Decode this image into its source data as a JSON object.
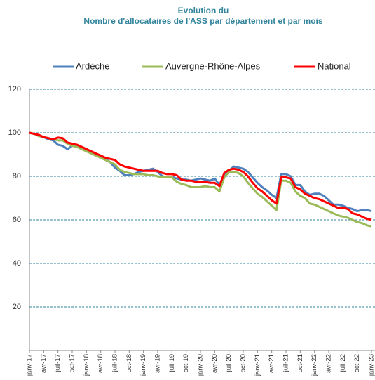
{
  "chart_data": {
    "type": "line",
    "title": [
      "Evolution du",
      "Nombre d'allocataires de l'ASS par département et par mois"
    ],
    "categories": [
      "janv-17",
      null,
      null,
      "avr-17",
      null,
      null,
      "juil-17",
      null,
      null,
      "oct-17",
      null,
      null,
      "janv-18",
      null,
      null,
      "avr-18",
      null,
      null,
      "juil-18",
      null,
      null,
      "oct-18",
      null,
      null,
      "janv-19",
      null,
      null,
      "avr-19",
      null,
      null,
      "juil-19",
      null,
      null,
      "oct-19",
      null,
      null,
      "janv-20",
      null,
      null,
      "avr-20",
      null,
      null,
      "juil-20",
      null,
      null,
      "oct-20",
      null,
      null,
      "janv-21",
      null,
      null,
      "avr-21",
      null,
      null,
      "juil-21",
      null,
      null,
      "oct-21",
      null,
      null,
      "janv-22",
      null,
      null,
      "avr-22",
      null,
      null,
      "juil-22",
      null,
      null,
      "oct-22",
      null,
      null,
      "janv-23"
    ],
    "series": [
      {
        "name": "Ardèche",
        "color": "#4f81bd",
        "values": [
          100,
          99.5,
          98.5,
          98,
          97,
          96.5,
          94.5,
          94,
          92.5,
          94,
          94,
          93,
          92,
          91,
          90,
          89,
          88,
          86.5,
          84,
          82.5,
          80.5,
          80.5,
          81,
          82,
          82.5,
          83,
          83.5,
          82,
          80,
          79.5,
          79.5,
          79,
          78.5,
          78.5,
          78,
          78.5,
          79,
          78.5,
          78,
          79,
          76,
          81,
          82.5,
          84.5,
          84,
          83.5,
          82,
          79.5,
          77,
          75,
          73.5,
          71.5,
          70,
          81,
          81,
          80,
          76,
          76,
          73,
          71.5,
          72,
          72,
          71,
          69,
          67,
          67,
          66.5,
          65.5,
          65,
          64,
          64.5,
          64.5,
          64
        ]
      },
      {
        "name": "Auvergne-Rhône-Alpes",
        "color": "#9bbb59",
        "values": [
          100,
          99.5,
          98.5,
          98,
          97.5,
          97,
          96.5,
          96.5,
          95,
          94,
          93.5,
          92.5,
          91.5,
          90.5,
          89.5,
          88.5,
          87.5,
          86.5,
          85.5,
          83,
          82,
          81.5,
          81,
          81,
          81,
          80.5,
          80.5,
          80,
          79.5,
          79.5,
          79.5,
          77.5,
          76.5,
          76,
          75,
          75,
          75,
          75.5,
          75,
          75,
          73,
          79.5,
          82,
          82,
          81.5,
          80,
          77,
          74.5,
          72,
          70.5,
          68.5,
          66.5,
          64.5,
          78,
          78,
          77,
          73,
          71,
          70,
          67.5,
          67,
          66,
          65,
          64,
          63,
          62,
          61.5,
          61,
          60,
          59,
          58.5,
          57.5,
          57
        ]
      },
      {
        "name": "National",
        "color": "#ff0000",
        "values": [
          100,
          99.5,
          99,
          98,
          97.5,
          97,
          97.8,
          97.5,
          95.5,
          95,
          94.5,
          93.5,
          92.5,
          91.5,
          90.5,
          89.5,
          88.5,
          88,
          87.5,
          85.5,
          84.5,
          84,
          83.5,
          83,
          82.5,
          82.5,
          82.5,
          82.5,
          81.5,
          81,
          81,
          80.5,
          78.5,
          78,
          78,
          77.5,
          77.5,
          77.5,
          77,
          77,
          75.5,
          81.5,
          83,
          83.5,
          83,
          82,
          80,
          77,
          74.5,
          73,
          71,
          69,
          67.5,
          79.5,
          79.5,
          79,
          75,
          74,
          72,
          71,
          70,
          69.5,
          68.5,
          67.5,
          66.5,
          65.5,
          65.5,
          65,
          63,
          62.5,
          61.5,
          60.5,
          60
        ]
      }
    ],
    "ylim": [
      0,
      120
    ],
    "yticks": [
      20,
      40,
      60,
      80,
      100,
      120
    ],
    "grid": true,
    "legend": "top"
  }
}
